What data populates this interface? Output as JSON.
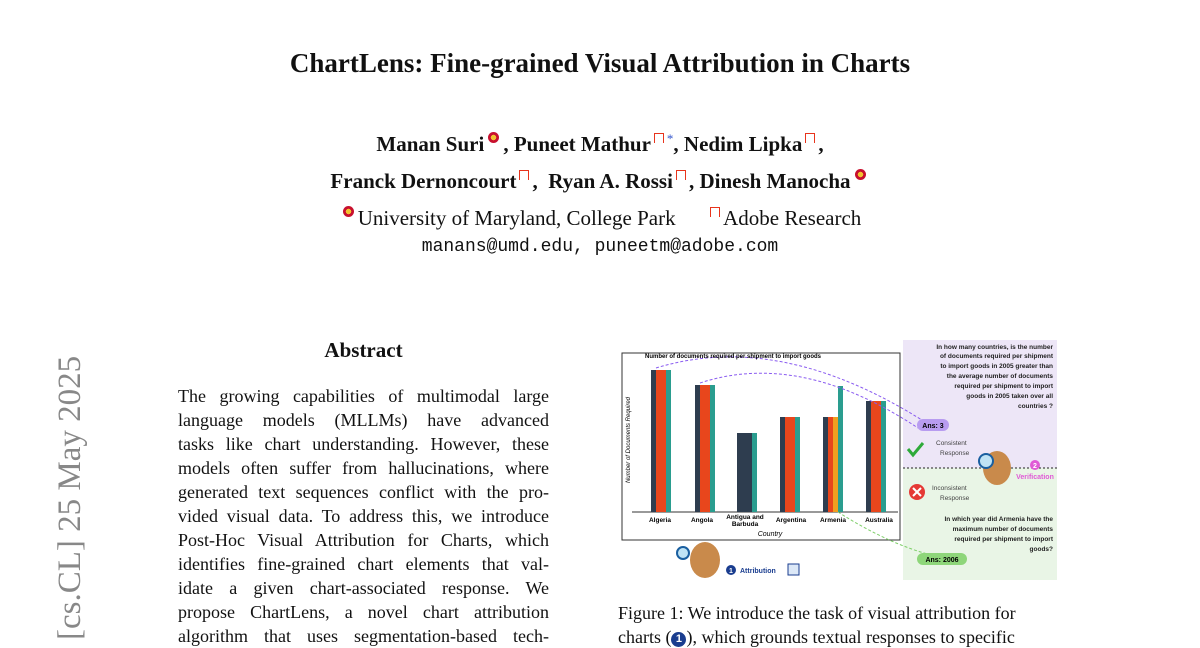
{
  "header": {
    "title": "ChartLens: Fine-grained Visual Attribution in Charts",
    "authors_line1": [
      "Manan Suri",
      ", Puneet Mathur",
      "*",
      ", Nedim Lipka",
      ","
    ],
    "authors_line2": [
      "Franck Dernoncourt",
      ",",
      "Ryan A. Rossi",
      ", Dinesh Manocha"
    ],
    "affiliations": [
      "University of Maryland, College Park",
      "Adobe Research"
    ],
    "emails": "manans@umd.edu, puneetm@adobe.com"
  },
  "sidebar": "[cs.CL]  25 May 2025",
  "abstract": {
    "heading": "Abstract",
    "lines": [
      "The growing capabilities of multimodal large",
      "language models (MLLMs) have advanced",
      "tasks like chart understanding. However, these",
      "models often suffer from hallucinations, where",
      "generated text sequences conflict with the pro-",
      "vided visual data. To address this, we introduce",
      "Post-Hoc Visual Attribution for Charts, which",
      "identifies fine-grained chart elements that val-",
      "idate a given chart-associated response.  We",
      "propose ChartLens, a novel chart attribution",
      "algorithm that uses segmentation-based tech-"
    ]
  },
  "figure": {
    "chart_title": "Number of documents required per shipment to import goods",
    "y_label": "Number of Documents Required",
    "x_label": "Country",
    "countries": [
      "Algeria",
      "Angola",
      "Antigua and",
      "Barbuda",
      "Argentina",
      "Armenia",
      "Australia"
    ],
    "question1": [
      "In how many countries, is the number",
      "of documents required per shipment",
      "to import goods in 2005 greater than",
      "the average number of documents",
      "required per shipment to import",
      "goods in 2005 taken over all",
      "countries ?"
    ],
    "answer1": "Ans: 3",
    "consistent": [
      "Consistent",
      "Response"
    ],
    "inconsistent": [
      "Inconsistent",
      "Response"
    ],
    "verification_num": "2",
    "verification": "Verification",
    "question2": [
      "In which year did Armenia have the",
      "maximum number of documents",
      "required per shipment to import",
      "goods?"
    ],
    "answer2": "Ans: 2006",
    "attribution_num": "1",
    "attribution": "Attribution",
    "caption_line1": "Figure 1: We introduce the task of visual attribution for",
    "caption_line2": [
      "charts (",
      "1",
      "), which grounds textual responses to specific"
    ]
  }
}
